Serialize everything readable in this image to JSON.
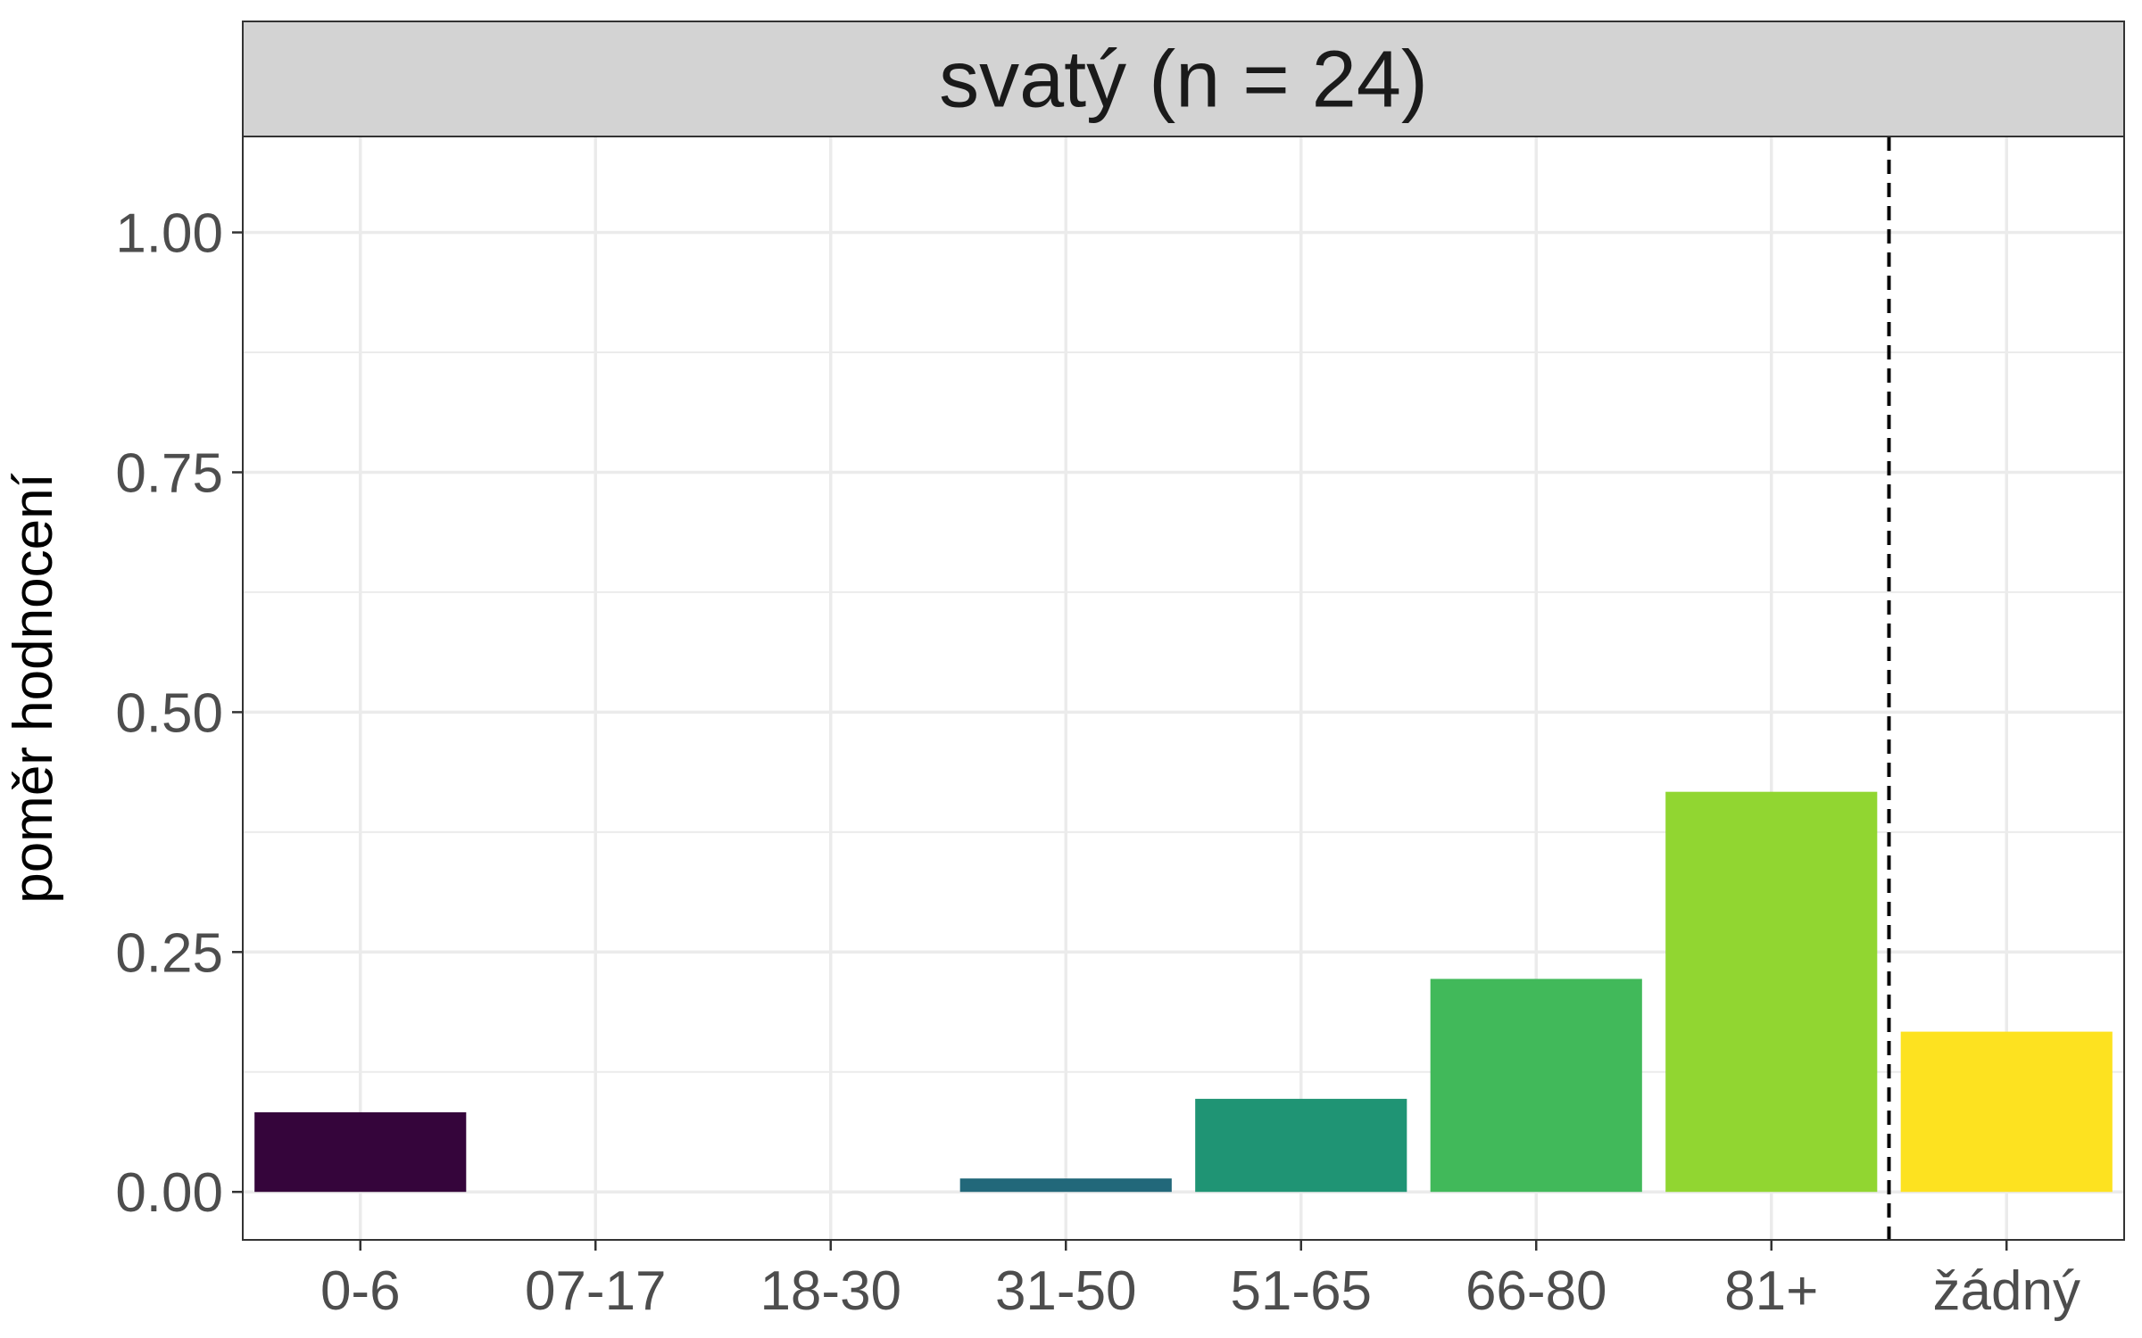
{
  "chart_data": {
    "type": "bar",
    "title": "svatý (n = 24)",
    "xlabel": "",
    "ylabel": "poměr hodnocení",
    "categories": [
      "0-6",
      "07-17",
      "18-30",
      "31-50",
      "51-65",
      "66-80",
      "81+",
      "žádný"
    ],
    "values": [
      0.083,
      0.0,
      0.0,
      0.014,
      0.097,
      0.222,
      0.417,
      0.167
    ],
    "colors": [
      "#35053b",
      "#3b1e68",
      "#3e4989",
      "#22687a",
      "#1f9474",
      "#41b95a",
      "#91d631",
      "#fde220"
    ],
    "ylim": [
      -0.05,
      1.1
    ],
    "yticks": [
      0.0,
      0.25,
      0.5,
      0.75,
      1.0
    ],
    "ytick_labels": [
      "0.00",
      "0.25",
      "0.50",
      "0.75",
      "1.00"
    ],
    "grid": true,
    "reference_line": {
      "after_category": "81+",
      "style": "dashed",
      "color": "#000000"
    },
    "strip_color": "#d3d3d3"
  }
}
